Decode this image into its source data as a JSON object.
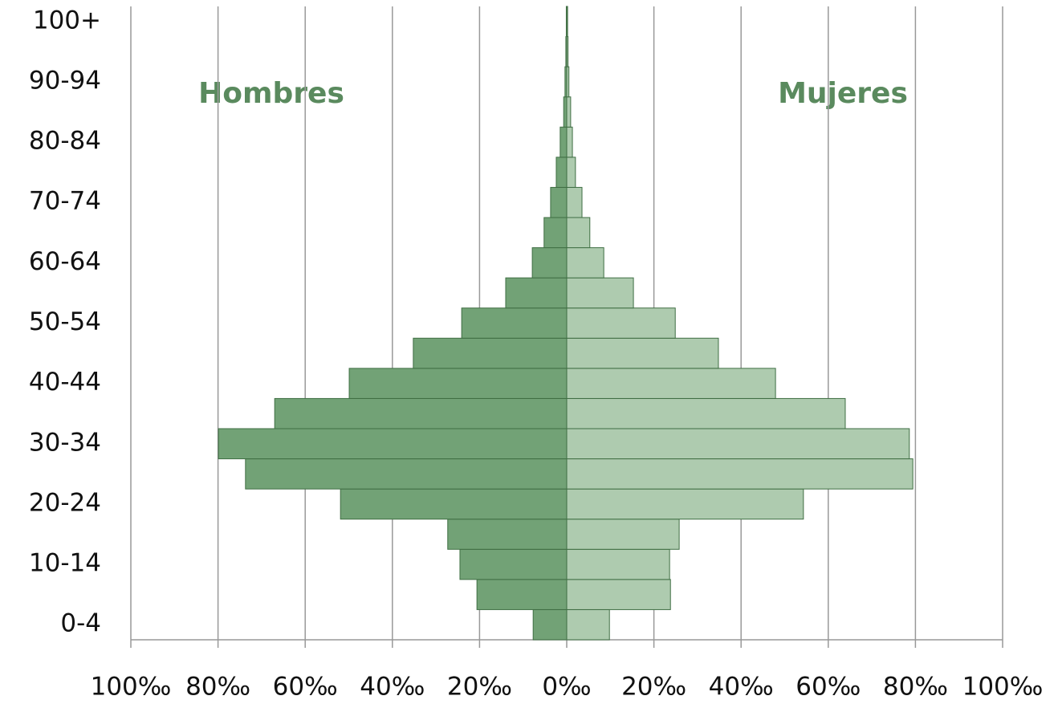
{
  "chart_data": {
    "type": "pyramid",
    "categories": [
      "0-4",
      null,
      "10-14",
      null,
      "20-24",
      null,
      "30-34",
      null,
      "40-44",
      null,
      "50-54",
      null,
      "60-64",
      null,
      "70-74",
      null,
      "80-84",
      null,
      "90-94",
      null,
      "100+"
    ],
    "series": [
      {
        "name": "Hombres",
        "color": "#72a276",
        "values": [
          -7.7,
          -20.6,
          -24.5,
          -27.3,
          -51.9,
          -73.7,
          -79.9,
          -67.0,
          -49.9,
          -35.2,
          -24.1,
          -14.0,
          -7.9,
          -5.2,
          -3.7,
          -2.4,
          -1.5,
          -0.7,
          -0.4,
          -0.2,
          -0.1
        ]
      },
      {
        "name": "Mujeres",
        "color": "#aecbaf",
        "values": [
          9.8,
          23.8,
          23.6,
          25.8,
          54.3,
          79.4,
          78.6,
          63.9,
          47.9,
          34.8,
          24.9,
          15.3,
          8.5,
          5.3,
          3.5,
          2.0,
          1.3,
          0.9,
          0.5,
          0.3,
          0.2
        ]
      }
    ],
    "xlim": [
      -100,
      100
    ],
    "xticks": [
      {
        "value": -100,
        "label": "100‰"
      },
      {
        "value": -80,
        "label": "80‰"
      },
      {
        "value": -60,
        "label": "60‰"
      },
      {
        "value": -40,
        "label": "40‰"
      },
      {
        "value": -20,
        "label": "20‰"
      },
      {
        "value": 0,
        "label": "0‰"
      },
      {
        "value": 20,
        "label": "20‰"
      },
      {
        "value": 40,
        "label": "40‰"
      },
      {
        "value": 60,
        "label": "60‰"
      },
      {
        "value": 80,
        "label": "80‰"
      },
      {
        "value": 100,
        "label": "100‰"
      }
    ],
    "grid": true
  }
}
